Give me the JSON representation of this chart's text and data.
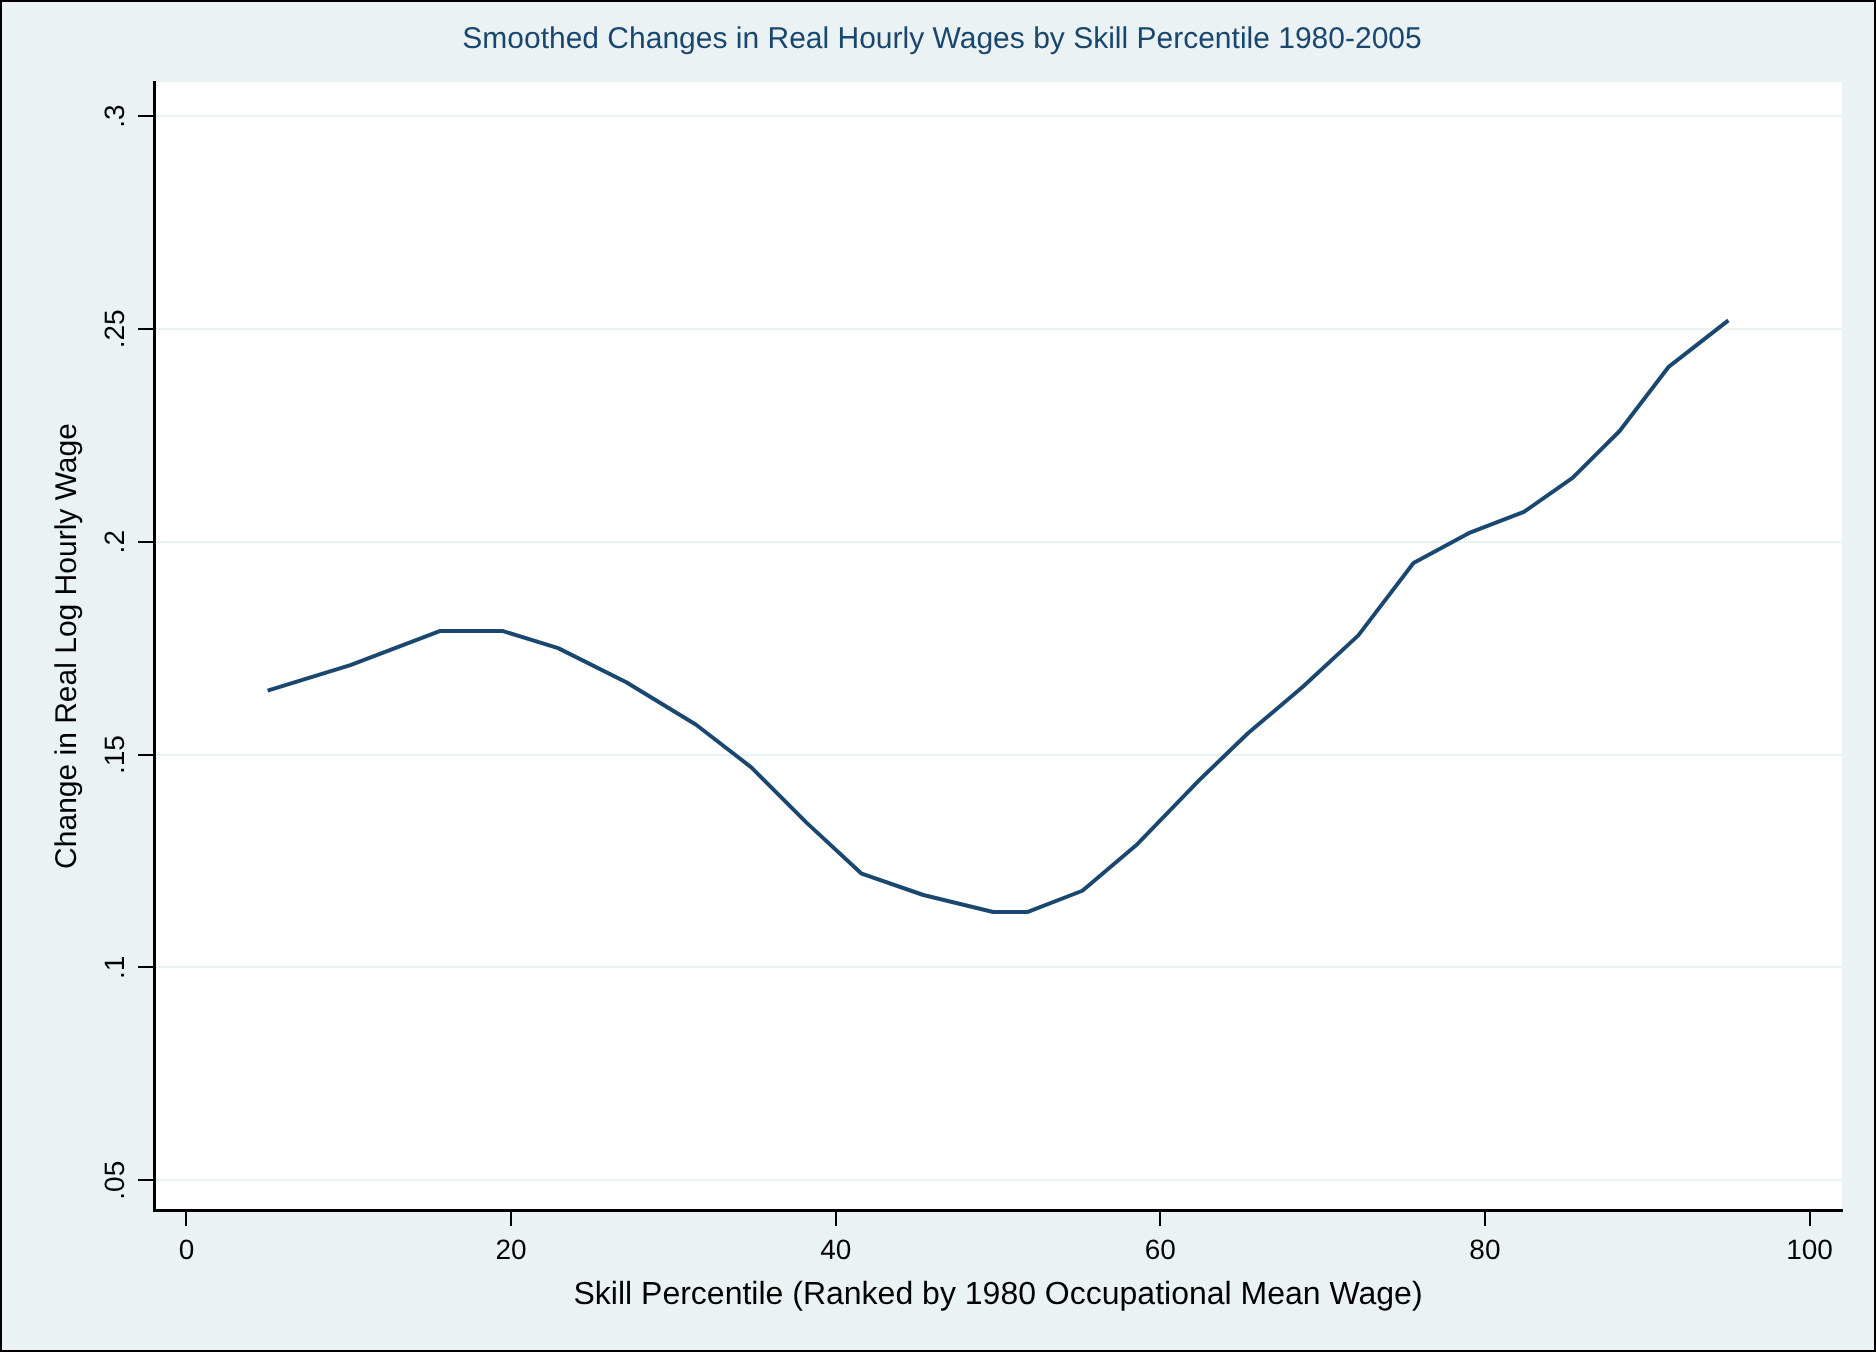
{
  "chart_data": {
    "type": "line",
    "title": "Smoothed Changes in Real Hourly Wages by Skill Percentile 1980-2005",
    "xlabel": "Skill Percentile (Ranked by 1980 Occupational Mean Wage)",
    "ylabel": "Change in Real Log Hourly Wage",
    "x": [
      5,
      10.1,
      15.6,
      19.5,
      22.9,
      27.1,
      31.4,
      34.8,
      38.2,
      41.6,
      45.4,
      49.7,
      51.8,
      55.2,
      58.6,
      62.4,
      65.4,
      68.8,
      72.2,
      75.6,
      79.0,
      82.4,
      85.4,
      88.3,
      91.3,
      95
    ],
    "series": [
      {
        "color": "#1a476f",
        "values": [
          0.165,
          0.171,
          0.179,
          0.179,
          0.175,
          0.167,
          0.157,
          0.147,
          0.134,
          0.122,
          0.117,
          0.113,
          0.113,
          0.118,
          0.129,
          0.144,
          0.155,
          0.166,
          0.178,
          0.195,
          0.202,
          0.207,
          0.215,
          0.226,
          0.241,
          0.252
        ]
      }
    ],
    "xlim": [
      -2,
      102
    ],
    "xticks": [
      0,
      20,
      40,
      60,
      80,
      100
    ],
    "ylim": [
      0.043,
      0.308
    ],
    "yticks": [
      {
        "value": 0.05,
        "label": ".05"
      },
      {
        "value": 0.1,
        "label": ".1"
      },
      {
        "value": 0.15,
        "label": ".15"
      },
      {
        "value": 0.2,
        "label": ".2"
      },
      {
        "value": 0.25,
        "label": ".25"
      },
      {
        "value": 0.3,
        "label": ".3"
      }
    ],
    "grid": "y",
    "legend": false,
    "line_style": "solid"
  }
}
